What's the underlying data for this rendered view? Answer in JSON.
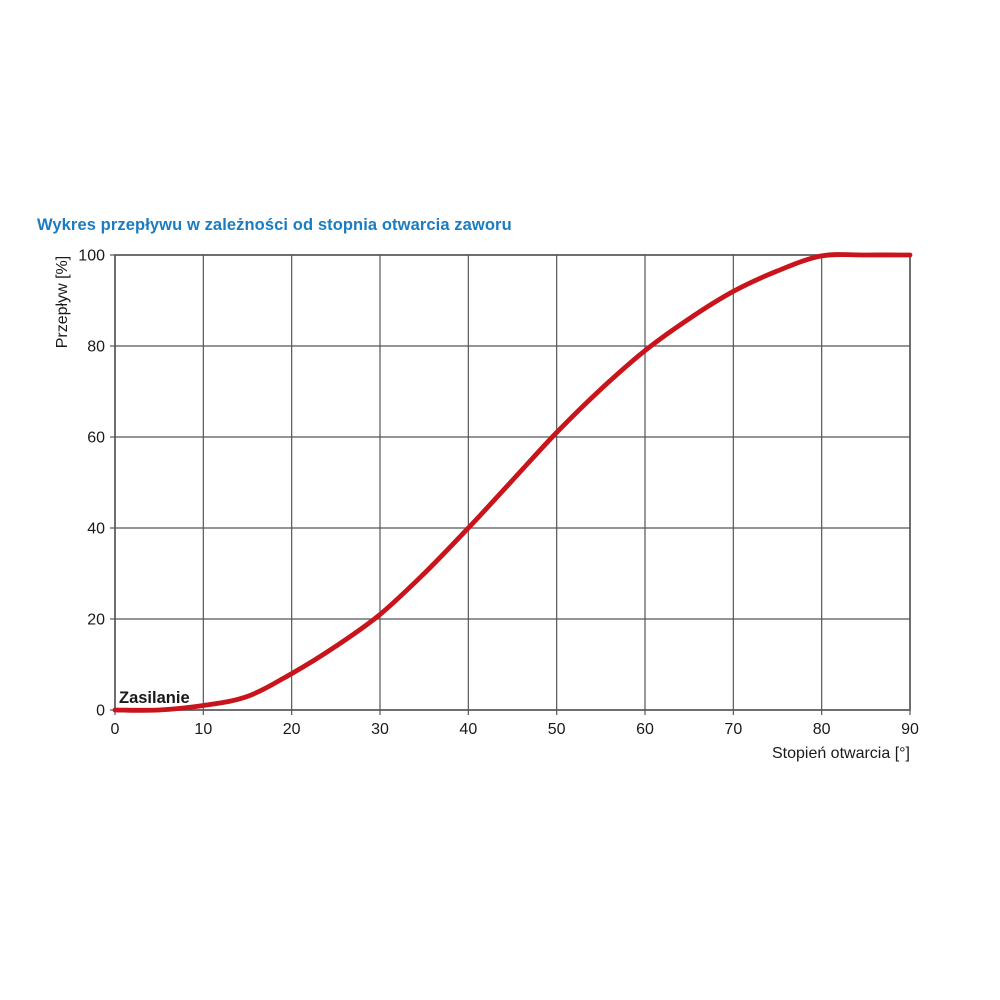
{
  "title": {
    "text": "Wykres przepływu w zależności od stopnia otwarcia zaworu"
  },
  "colors": {
    "title_blue": "#1b7cc0",
    "curve_red": "#c8141a",
    "grid_gray": "#565659",
    "tick_text": "#1a1a1a",
    "background": "#ffffff"
  },
  "chart_data": {
    "type": "line",
    "title": "Wykres przepływu w zależności od stopnia otwarcia zaworu",
    "xlabel": "Stopień otwarcia [°]",
    "ylabel": "Przepływ [%]",
    "xlim": [
      0,
      90
    ],
    "ylim": [
      0,
      100
    ],
    "xticks": [
      0,
      10,
      20,
      30,
      40,
      50,
      60,
      70,
      80,
      90
    ],
    "yticks": [
      0,
      20,
      40,
      60,
      80,
      100
    ],
    "grid": true,
    "legend_position": "inside-bottom-left",
    "series": [
      {
        "name": "Zasilanie",
        "color": "#c8141a",
        "x": [
          0,
          5,
          10,
          15,
          20,
          25,
          30,
          35,
          40,
          45,
          50,
          55,
          60,
          65,
          70,
          75,
          80,
          85,
          90
        ],
        "y": [
          0,
          0,
          1,
          3,
          8,
          14,
          21,
          30,
          40,
          50.5,
          61,
          70.5,
          79,
          86,
          92,
          96.5,
          99.8,
          100,
          100
        ]
      }
    ]
  }
}
